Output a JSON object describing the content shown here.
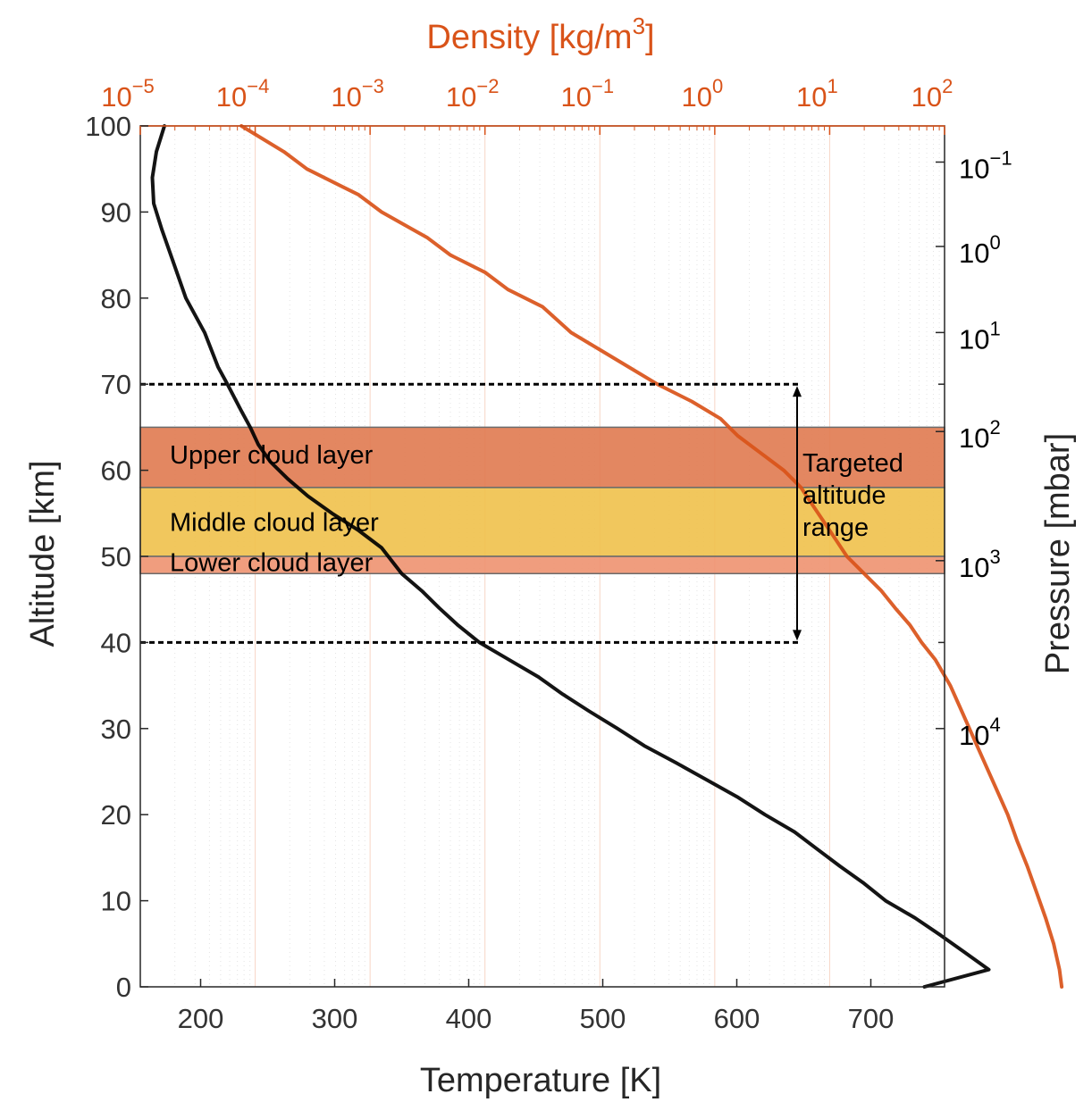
{
  "chart_data": {
    "type": "line",
    "title": "",
    "xlabel": "Temperature [K]",
    "ylabel": "Altitude [km]",
    "x2label_base": "Density [kg/m",
    "x2label_sup": "3",
    "x2label_end": "]",
    "y2label": "Pressure [mbar]",
    "xlim": [
      155,
      755
    ],
    "ylim": [
      0,
      100
    ],
    "x2lim_log10": [
      -5,
      2
    ],
    "xticks": [
      {
        "value": 200,
        "label": "200"
      },
      {
        "value": 300,
        "label": "300"
      },
      {
        "value": 400,
        "label": "400"
      },
      {
        "value": 500,
        "label": "500"
      },
      {
        "value": 600,
        "label": "600"
      },
      {
        "value": 700,
        "label": "700"
      }
    ],
    "yticks": [
      {
        "value": 0,
        "label": "0"
      },
      {
        "value": 10,
        "label": "10"
      },
      {
        "value": 20,
        "label": "20"
      },
      {
        "value": 30,
        "label": "30"
      },
      {
        "value": 40,
        "label": "40"
      },
      {
        "value": 50,
        "label": "50"
      },
      {
        "value": 60,
        "label": "60"
      },
      {
        "value": 70,
        "label": "70"
      },
      {
        "value": 80,
        "label": "80"
      },
      {
        "value": 90,
        "label": "90"
      },
      {
        "value": 100,
        "label": "100"
      }
    ],
    "x2ticks": [
      {
        "exp": -5,
        "base": "10",
        "sup": "−5"
      },
      {
        "exp": -4,
        "base": "10",
        "sup": "−4"
      },
      {
        "exp": -3,
        "base": "10",
        "sup": "−3"
      },
      {
        "exp": -2,
        "base": "10",
        "sup": "−2"
      },
      {
        "exp": -1,
        "base": "10",
        "sup": "−1"
      },
      {
        "exp": 0,
        "base": "10",
        "sup": "0"
      },
      {
        "exp": 1,
        "base": "10",
        "sup": "1"
      },
      {
        "exp": 2,
        "base": "10",
        "sup": "2"
      }
    ],
    "y2ticks": [
      {
        "altitude": 95.8,
        "base": "10",
        "sup": "−1"
      },
      {
        "altitude": 86.0,
        "base": "10",
        "sup": "0"
      },
      {
        "altitude": 76.0,
        "base": "10",
        "sup": "1"
      },
      {
        "altitude": 64.5,
        "base": "10",
        "sup": "2"
      },
      {
        "altitude": 49.5,
        "base": "10",
        "sup": "3"
      },
      {
        "altitude": 30.0,
        "base": "10",
        "sup": "4"
      }
    ],
    "y2minor_altitudes": [
      70,
      40
    ],
    "series": [
      {
        "name": "Temperature",
        "axis": "bottom",
        "color": "#000000",
        "points": [
          [
            173,
            100
          ],
          [
            167,
            97
          ],
          [
            164,
            94
          ],
          [
            165,
            91
          ],
          [
            171,
            88
          ],
          [
            180,
            84
          ],
          [
            189,
            80
          ],
          [
            203,
            76
          ],
          [
            213,
            72
          ],
          [
            220,
            70
          ],
          [
            230,
            67
          ],
          [
            237,
            65
          ],
          [
            243,
            63
          ],
          [
            252,
            61
          ],
          [
            265,
            59
          ],
          [
            280,
            57
          ],
          [
            298,
            55
          ],
          [
            318,
            53
          ],
          [
            335,
            51
          ],
          [
            350,
            48
          ],
          [
            365,
            46
          ],
          [
            378,
            44
          ],
          [
            392,
            42
          ],
          [
            408,
            40
          ],
          [
            430,
            38
          ],
          [
            452,
            36
          ],
          [
            470,
            34
          ],
          [
            490,
            32
          ],
          [
            511,
            30
          ],
          [
            531,
            28
          ],
          [
            555,
            26
          ],
          [
            578,
            24
          ],
          [
            601,
            22
          ],
          [
            621,
            20
          ],
          [
            643,
            18
          ],
          [
            660,
            16
          ],
          [
            677,
            14
          ],
          [
            695,
            12
          ],
          [
            711,
            10
          ],
          [
            733,
            8
          ],
          [
            752,
            6
          ],
          [
            770,
            4
          ],
          [
            788,
            2
          ],
          [
            740,
            0
          ]
        ]
      },
      {
        "name": "Density",
        "axis": "top",
        "color": "#d95319",
        "points": [
          [
            -4.12,
            100
          ],
          [
            -3.75,
            97
          ],
          [
            -3.55,
            95
          ],
          [
            -3.1,
            92
          ],
          [
            -2.9,
            90
          ],
          [
            -2.5,
            87
          ],
          [
            -2.3,
            85
          ],
          [
            -2.0,
            83
          ],
          [
            -1.8,
            81
          ],
          [
            -1.5,
            79
          ],
          [
            -1.25,
            76
          ],
          [
            -1.0,
            74
          ],
          [
            -0.75,
            72
          ],
          [
            -0.5,
            70
          ],
          [
            -0.2,
            68
          ],
          [
            0.05,
            66
          ],
          [
            0.2,
            64
          ],
          [
            0.4,
            62
          ],
          [
            0.6,
            60
          ],
          [
            0.75,
            58
          ],
          [
            0.85,
            56
          ],
          [
            0.95,
            54
          ],
          [
            1.05,
            52
          ],
          [
            1.15,
            50
          ],
          [
            1.3,
            48
          ],
          [
            1.45,
            46
          ],
          [
            1.57,
            44
          ],
          [
            1.7,
            42
          ],
          [
            1.8,
            40
          ],
          [
            1.92,
            38
          ],
          [
            2.05,
            35
          ],
          [
            2.15,
            32
          ],
          [
            2.25,
            29
          ],
          [
            2.35,
            26
          ],
          [
            2.45,
            23
          ],
          [
            2.55,
            20
          ],
          [
            2.63,
            17
          ],
          [
            2.72,
            14
          ],
          [
            2.8,
            11
          ],
          [
            2.88,
            8
          ],
          [
            2.95,
            5
          ],
          [
            3.0,
            2
          ],
          [
            3.02,
            0
          ]
        ]
      }
    ],
    "cloud_layers": [
      {
        "name": "Upper cloud layer",
        "bottom": 58,
        "top": 65,
        "color": "#e07a50"
      },
      {
        "name": "Middle cloud layer",
        "bottom": 50,
        "top": 58,
        "color": "#f0c14b"
      },
      {
        "name": "Lower cloud layer",
        "bottom": 48,
        "top": 50,
        "color": "#ee9270"
      }
    ],
    "targeted_range": {
      "label_lines": [
        "Targeted",
        "altitude",
        "range"
      ],
      "bottom": 40,
      "top": 70,
      "arrow_temperature": 645
    }
  }
}
